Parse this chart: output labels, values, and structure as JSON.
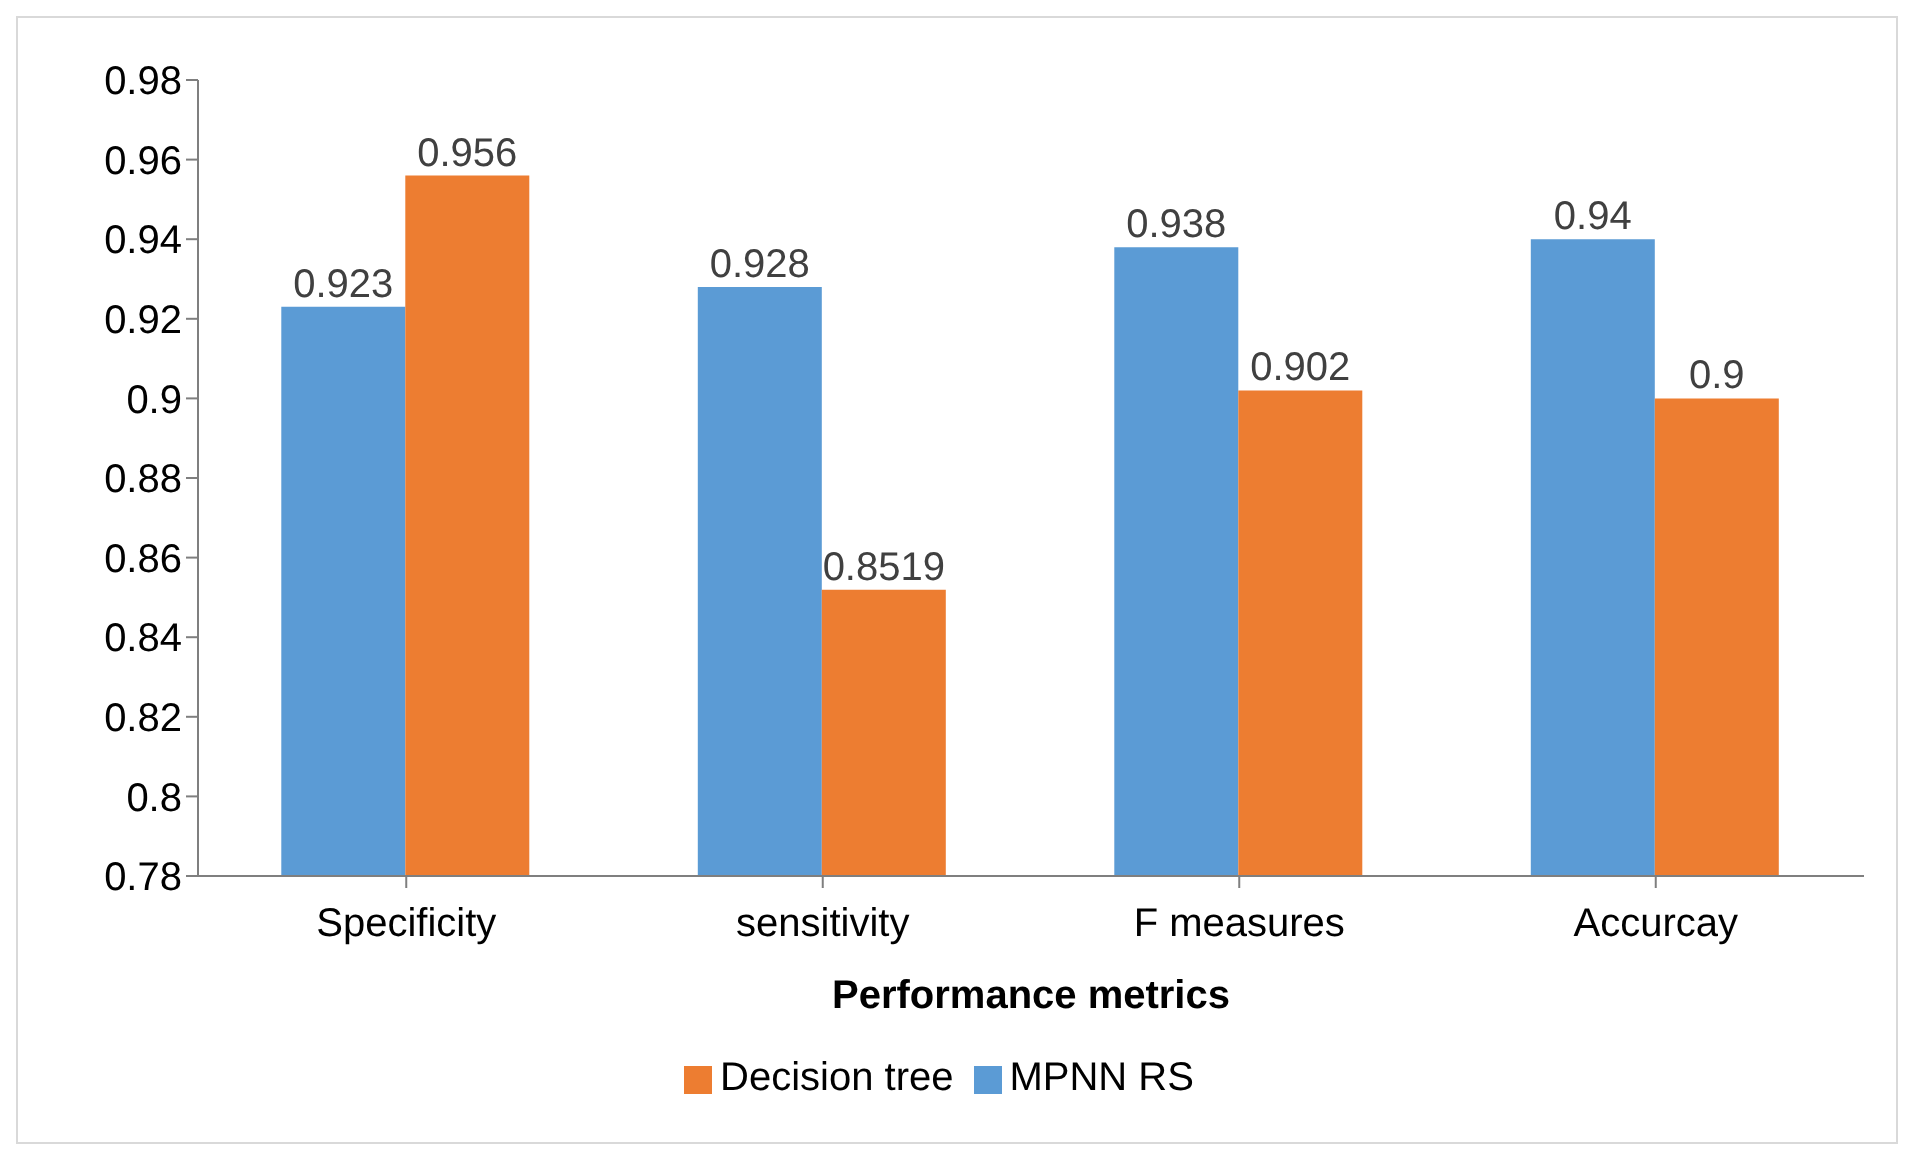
{
  "chart_data": {
    "type": "bar",
    "xlabel": "Performance metrics",
    "categories": [
      "Specificity",
      "sensitivity",
      "F measures",
      "Accurcay"
    ],
    "series": [
      {
        "name": "MPNN RS",
        "color": "#5b9bd5",
        "values": [
          0.923,
          0.928,
          0.938,
          0.94
        ]
      },
      {
        "name": "Decision tree",
        "color": "#ed7d31",
        "values": [
          0.956,
          0.8519,
          0.902,
          0.9
        ]
      }
    ],
    "ylim": [
      0.78,
      0.98
    ],
    "yticks": [
      0.78,
      0.8,
      0.82,
      0.84,
      0.86,
      0.88,
      0.9,
      0.92,
      0.94,
      0.96,
      0.98
    ],
    "data_labels": true,
    "grid": false,
    "legend": "bottom"
  }
}
